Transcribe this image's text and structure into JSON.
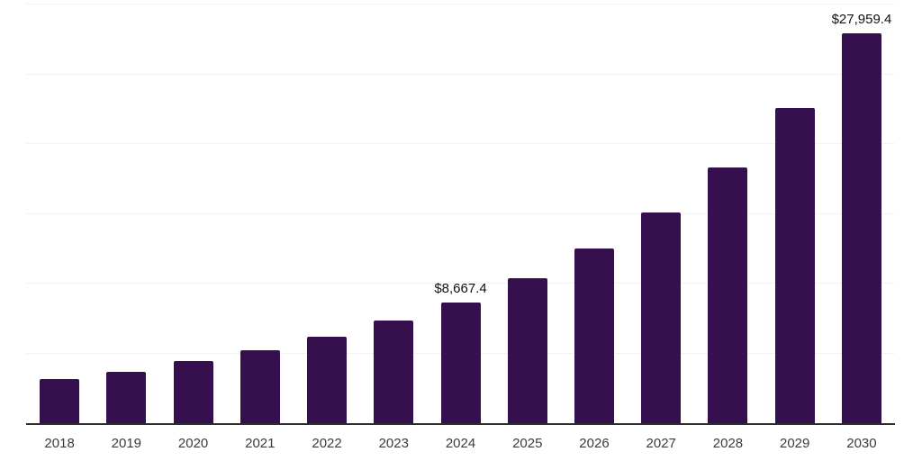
{
  "chart_data": {
    "type": "bar",
    "title": "",
    "xlabel": "",
    "ylabel": "",
    "categories": [
      "2018",
      "2019",
      "2020",
      "2021",
      "2022",
      "2023",
      "2024",
      "2025",
      "2026",
      "2027",
      "2028",
      "2029",
      "2030"
    ],
    "values": [
      3150,
      3710,
      4460,
      5230,
      6220,
      7350,
      8667.4,
      10360,
      12530,
      15080,
      18330,
      22570,
      27959.4
    ],
    "data_labels": [
      "",
      "",
      "",
      "",
      "",
      "",
      "$8,667.4",
      "",
      "",
      "",
      "",
      "",
      "$27,959.4"
    ],
    "ylim": [
      0,
      30000
    ],
    "gridline_interval": 5000,
    "grid": "horizontal-only",
    "legend": "none",
    "y_tick_labels_visible": false,
    "bar_color": "#36104e",
    "gridline_color": "#f2f2f2",
    "axis_line_color": "#2d2d2d",
    "x_label_color": "#3b3b3b",
    "data_label_color": "#111111"
  }
}
